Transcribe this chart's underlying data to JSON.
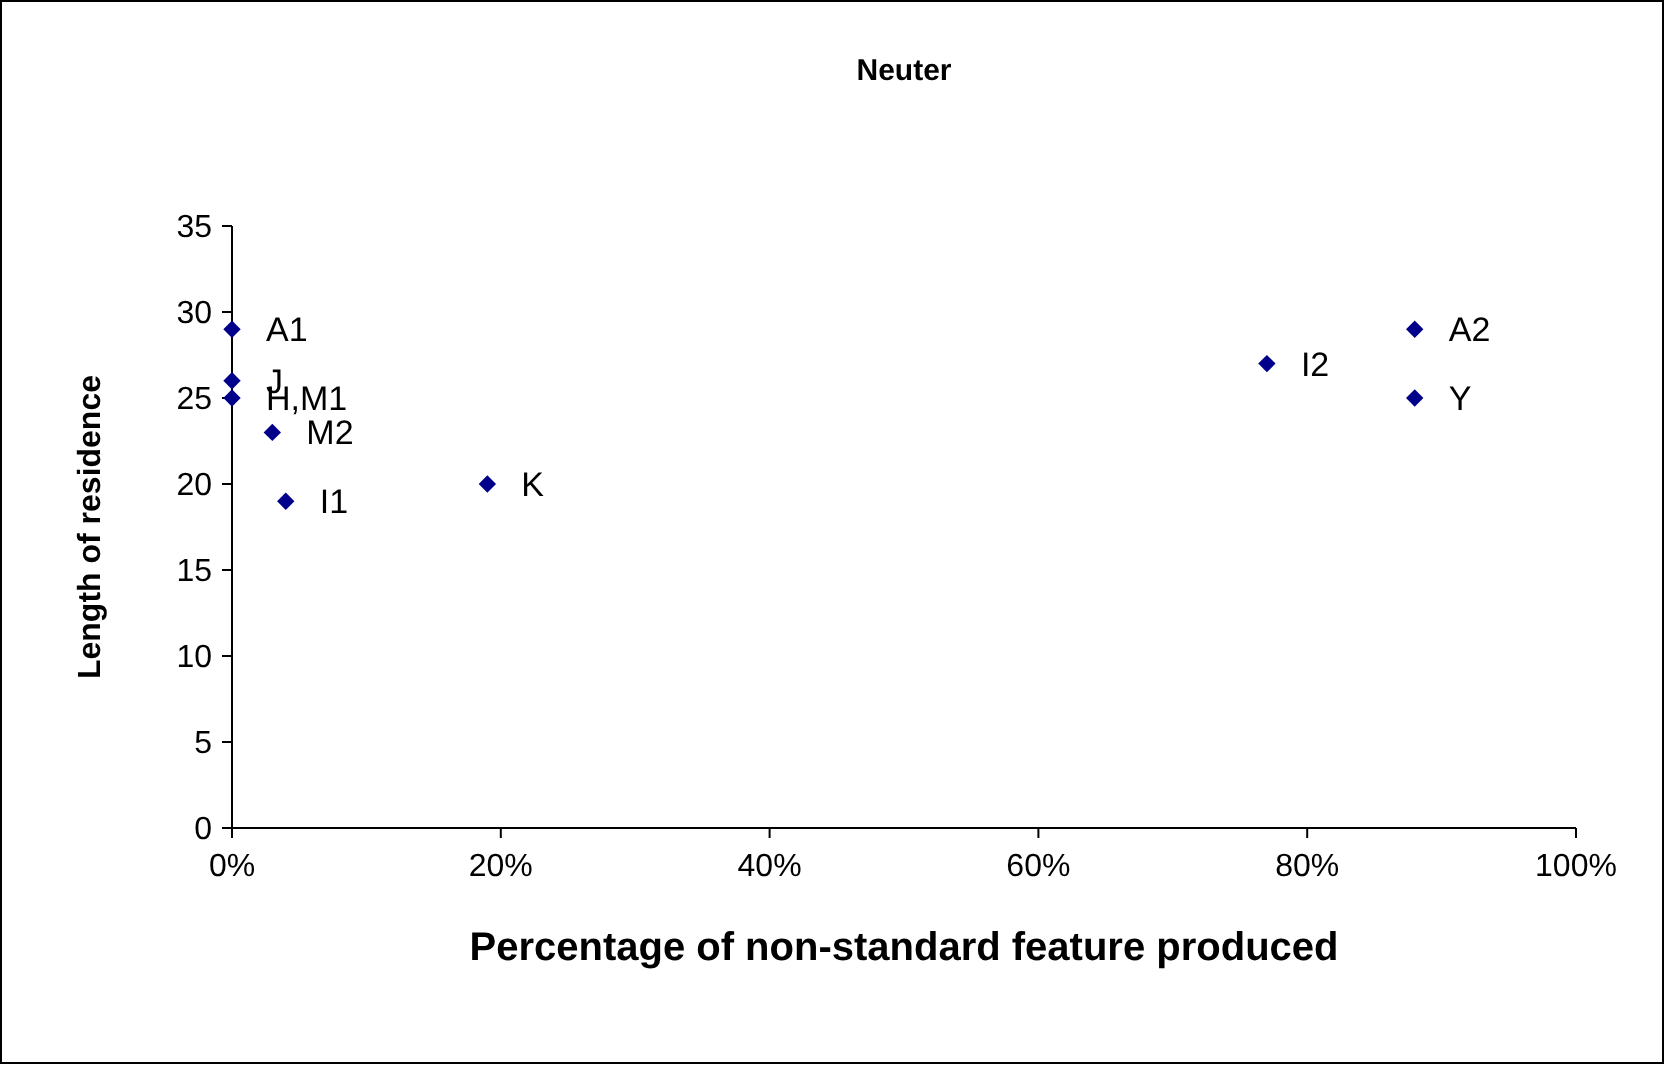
{
  "chart_data": {
    "type": "scatter",
    "title": "Neuter",
    "xlabel": "Percentage of non-standard feature produced",
    "ylabel": "Length of residence",
    "x": [
      0,
      0,
      0,
      3,
      4,
      19,
      77,
      88,
      88
    ],
    "series": [
      {
        "color": "#00008b",
        "values": [
          29,
          26,
          25,
          23,
          19,
          20,
          27,
          29,
          25
        ]
      }
    ],
    "xlim": [
      0,
      100
    ],
    "xticks": [
      {
        "value": 0,
        "label": "0%"
      },
      {
        "value": 20,
        "label": "20%"
      },
      {
        "value": 40,
        "label": "40%"
      },
      {
        "value": 60,
        "label": "60%"
      },
      {
        "value": 80,
        "label": "80%"
      },
      {
        "value": 100,
        "label": "100%"
      }
    ],
    "ylim": [
      0,
      35
    ],
    "yticks": [
      0,
      5,
      10,
      15,
      20,
      25,
      30,
      35
    ],
    "grid": false,
    "marker": "diamond",
    "annotations": [
      {
        "text": "A1",
        "x": 0,
        "y": 29
      },
      {
        "text": "J",
        "x": 0,
        "y": 26
      },
      {
        "text": "H,M1",
        "x": 0,
        "y": 25
      },
      {
        "text": "M2",
        "x": 3,
        "y": 23
      },
      {
        "text": "I1",
        "x": 4,
        "y": 19
      },
      {
        "text": "K",
        "x": 19,
        "y": 20
      },
      {
        "text": "I2",
        "x": 77,
        "y": 27
      },
      {
        "text": "A2",
        "x": 88,
        "y": 29
      },
      {
        "text": "Y",
        "x": 88,
        "y": 25
      }
    ]
  }
}
